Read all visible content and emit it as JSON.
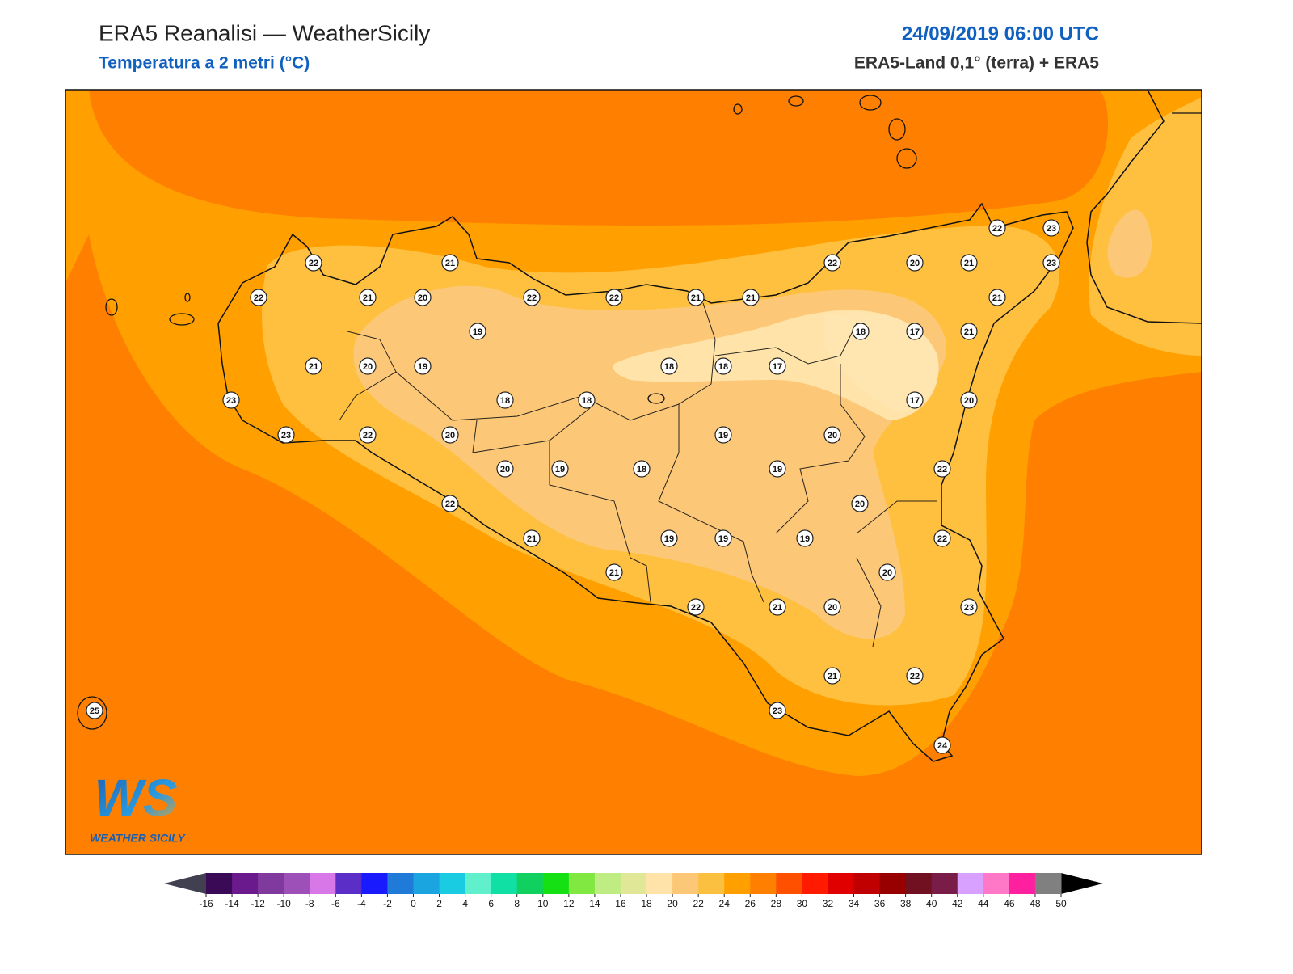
{
  "header": {
    "title": "ERA5 Reanalisi — WeatherSicily",
    "subtitle": "Temperatura a 2 metri (°C)",
    "datetime": "24/09/2019 06:00 UTC",
    "source": "ERA5-Land 0,1° (terra) + ERA5"
  },
  "map": {
    "stations": [
      22,
      21,
      22,
      20,
      21,
      22,
      23,
      23,
      22,
      21,
      20,
      22,
      22,
      21,
      21,
      21,
      19,
      18,
      17,
      21,
      21,
      20,
      19,
      18,
      18,
      17,
      23,
      18,
      18,
      17,
      20,
      23,
      22,
      20,
      19,
      20,
      20,
      19,
      18,
      19,
      22,
      22,
      20,
      21,
      19,
      19,
      19,
      22,
      21,
      20,
      22,
      21,
      20,
      23,
      21,
      22,
      23,
      24,
      25
    ]
  },
  "logo": {
    "text": "WS",
    "caption": "WEATHER SICILY"
  },
  "colorbar": {
    "ticks": [
      -16,
      -14,
      -12,
      -10,
      -8,
      -6,
      -4,
      -2,
      0,
      2,
      4,
      6,
      8,
      10,
      12,
      14,
      16,
      18,
      20,
      22,
      24,
      26,
      28,
      30,
      32,
      34,
      36,
      38,
      40,
      42,
      44,
      46,
      48,
      50
    ],
    "colors": [
      "#3a0a56",
      "#6a1a8c",
      "#803a9e",
      "#9c50b8",
      "#d878e8",
      "#5c2ec8",
      "#1a1aff",
      "#1f7ad8",
      "#1aa4e0",
      "#19cce2",
      "#60f0cc",
      "#10e0a4",
      "#10d060",
      "#14e014",
      "#80e840",
      "#c0ec84",
      "#e0e898",
      "#ffe3a8",
      "#fcc878",
      "#fcc040",
      "#ffa000",
      "#ff8000",
      "#ff5000",
      "#ff1a00",
      "#e00000",
      "#c00000",
      "#980000",
      "#701020",
      "#7a1c48",
      "#d8a0ff",
      "#ff78c8",
      "#ff20a0",
      "#808080",
      "#404040"
    ],
    "under_color": "#404050",
    "over_color": "#000000"
  }
}
